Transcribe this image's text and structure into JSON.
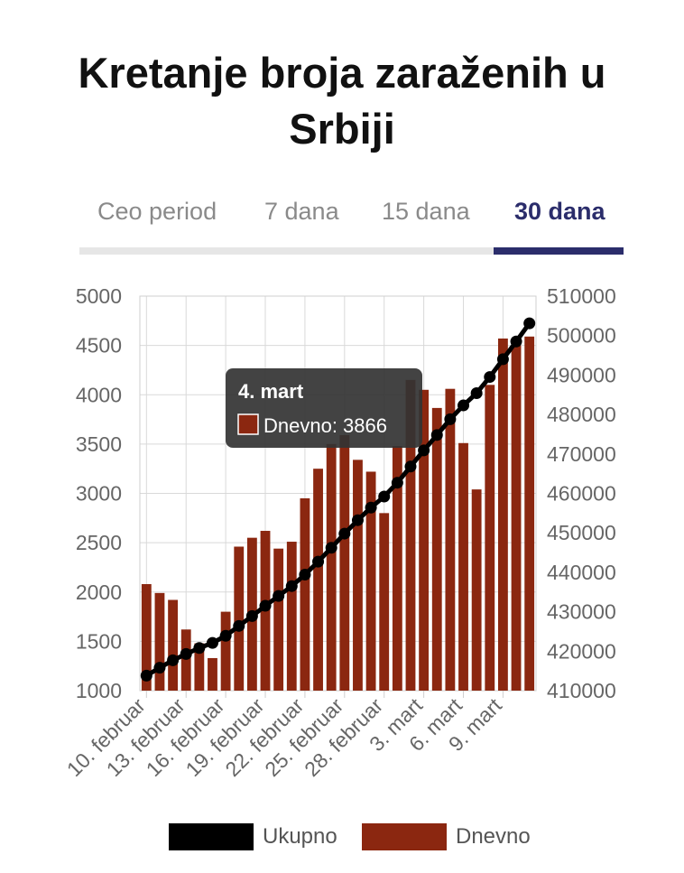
{
  "title": "Kretanje broja zaraženih u Srbiji",
  "tabs": [
    {
      "label": "Ceo period",
      "active": false
    },
    {
      "label": "7 dana",
      "active": false
    },
    {
      "label": "15 dana",
      "active": false
    },
    {
      "label": "30 dana",
      "active": true
    }
  ],
  "colors": {
    "bar": "#8b2710",
    "line": "#000000",
    "accent": "#2b2d6b",
    "tooltip_bg": "#333333"
  },
  "tooltip": {
    "title": "4. mart",
    "label": "Dnevno: 3866"
  },
  "legend": [
    {
      "label": "Ukupno",
      "color": "#000000"
    },
    {
      "label": "Dnevno",
      "color": "#8b2710"
    }
  ],
  "chart_data": {
    "type": "bar+line",
    "x_tick_labels": [
      "10. februar",
      "13. februar",
      "16. februar",
      "19. februar",
      "22. februar",
      "25. februar",
      "28. februar",
      "3. mart",
      "6. mart",
      "9. mart"
    ],
    "left_axis": {
      "min": 1000,
      "max": 5000,
      "ticks": [
        1000,
        1500,
        2000,
        2500,
        3000,
        3500,
        4000,
        4500,
        5000
      ]
    },
    "right_axis": {
      "min": 410000,
      "max": 510000,
      "ticks": [
        410000,
        420000,
        430000,
        440000,
        450000,
        460000,
        470000,
        480000,
        490000,
        500000,
        510000
      ]
    },
    "grid": true,
    "legend_position": "bottom",
    "series": [
      {
        "name": "Dnevno",
        "type": "bar",
        "axis": "left",
        "values": [
          2080,
          1990,
          1920,
          1620,
          1480,
          1330,
          1800,
          2460,
          2550,
          2620,
          2440,
          2510,
          2950,
          3250,
          3500,
          3590,
          3340,
          3220,
          2800,
          3480,
          4150,
          4050,
          3866,
          4060,
          3510,
          3040,
          4100,
          4570,
          4500,
          4590
        ]
      },
      {
        "name": "Ukupno",
        "type": "line",
        "axis": "right",
        "values": [
          413800,
          415800,
          417700,
          419300,
          420800,
          422100,
          423900,
          426400,
          428900,
          431500,
          434000,
          436500,
          439400,
          442700,
          446200,
          449800,
          453200,
          456400,
          459200,
          462700,
          466800,
          470900,
          474800,
          478800,
          482300,
          485400,
          489500,
          494000,
          498500,
          503100
        ]
      }
    ]
  }
}
